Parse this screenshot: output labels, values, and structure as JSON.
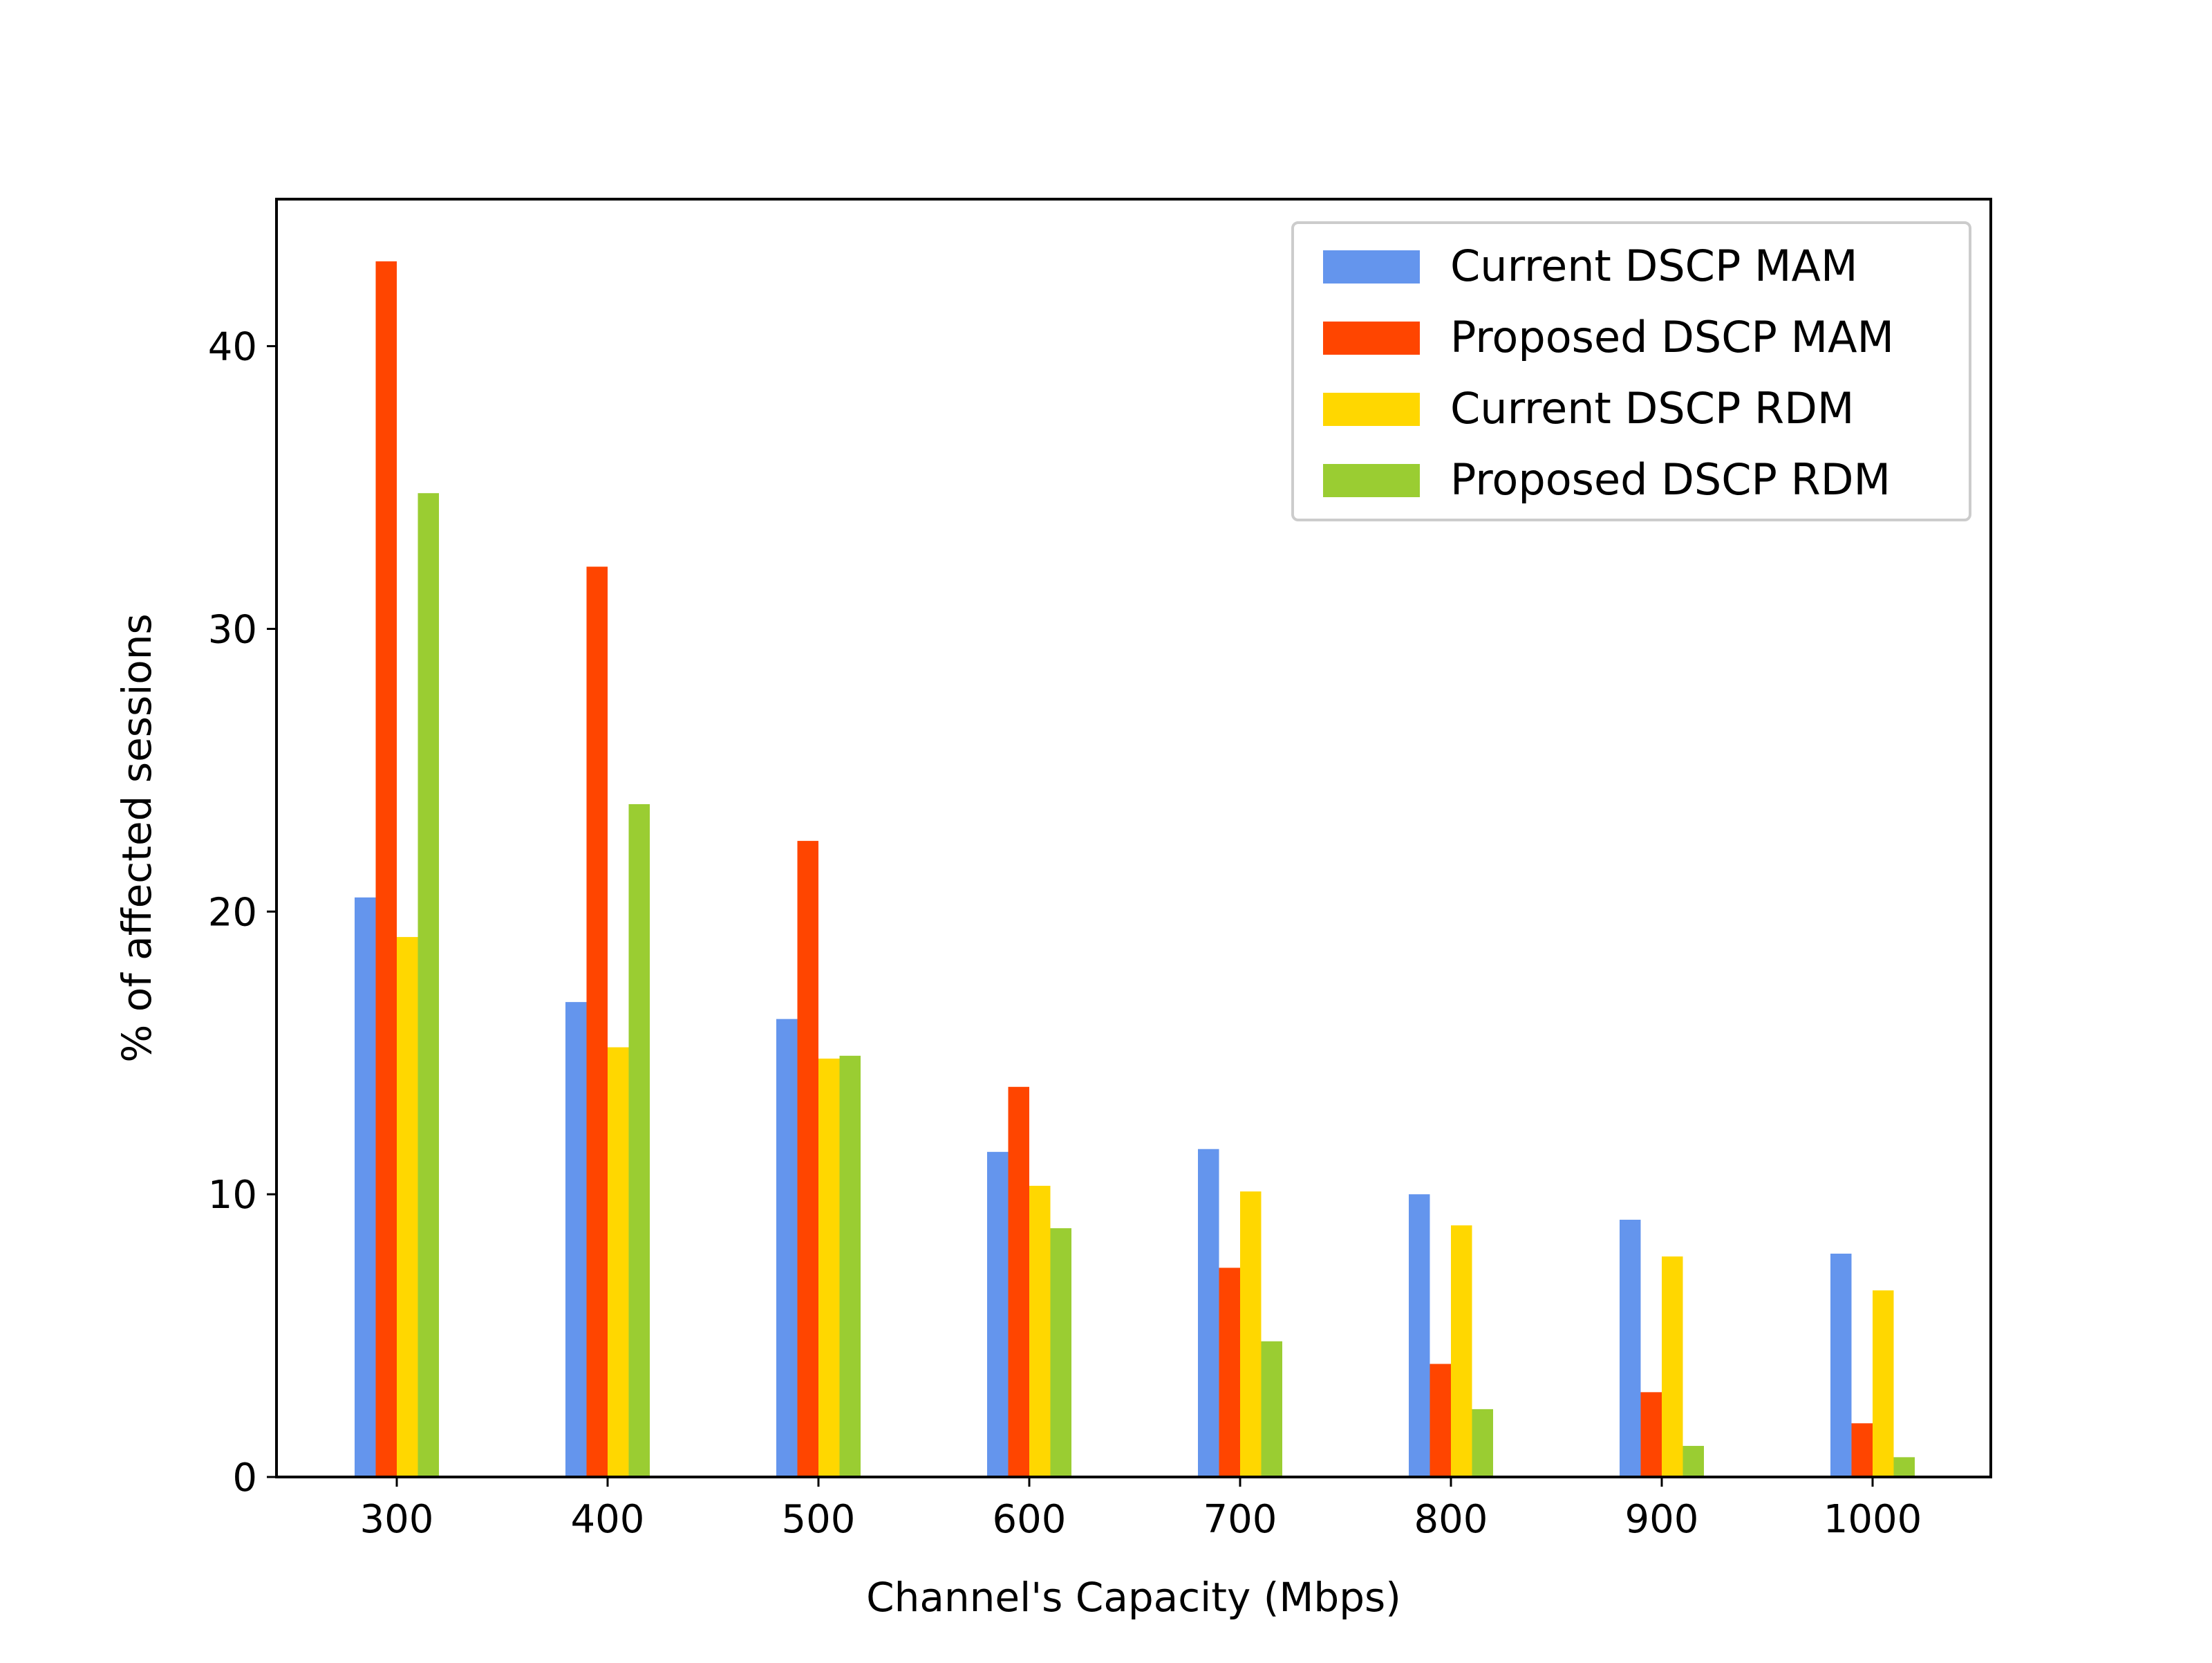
{
  "chart_data": {
    "type": "bar",
    "title": "",
    "xlabel": "Channel's Capacity (Mbps)",
    "ylabel": "% of affected sessions",
    "categories": [
      "300",
      "400",
      "500",
      "600",
      "700",
      "800",
      "900",
      "1000"
    ],
    "ylim": [
      0,
      45.2
    ],
    "yticks": [
      0,
      10,
      20,
      30,
      40
    ],
    "grid": false,
    "legend_position": "top-right",
    "series": [
      {
        "name": "Current DSCP MAM",
        "color": "#6495ED",
        "values": [
          20.5,
          16.8,
          16.2,
          11.5,
          11.6,
          10.0,
          9.1,
          7.9
        ]
      },
      {
        "name": "Proposed DSCP MAM",
        "color": "#FF4500",
        "values": [
          43.0,
          32.2,
          22.5,
          13.8,
          7.4,
          4.0,
          3.0,
          1.9
        ]
      },
      {
        "name": "Current DSCP RDM",
        "color": "#FFD700",
        "values": [
          19.1,
          15.2,
          14.8,
          10.3,
          10.1,
          8.9,
          7.8,
          6.6
        ]
      },
      {
        "name": "Proposed DSCP RDM",
        "color": "#9ACD32",
        "values": [
          34.8,
          23.8,
          14.9,
          8.8,
          4.8,
          2.4,
          1.1,
          0.7
        ]
      }
    ]
  }
}
